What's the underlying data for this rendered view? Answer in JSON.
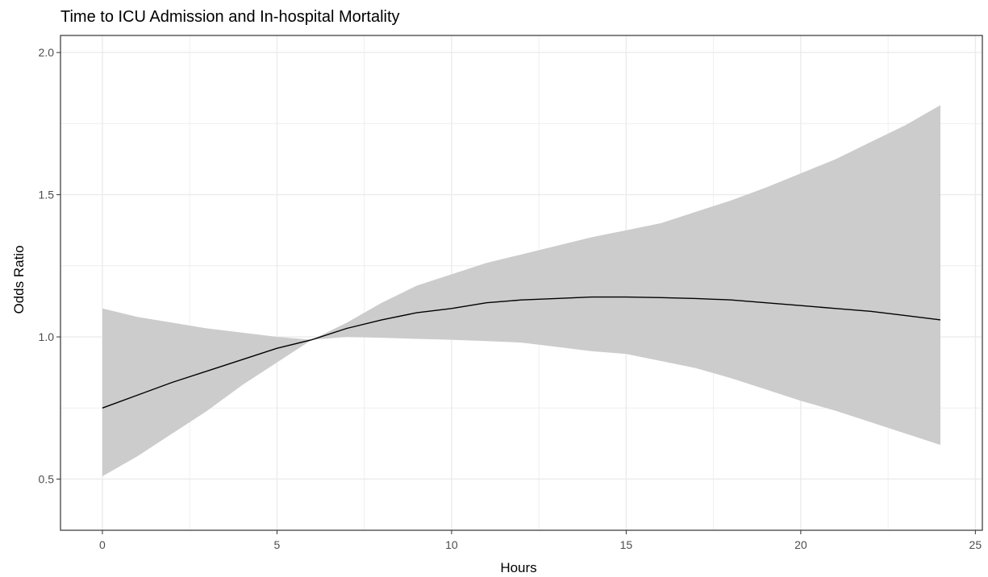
{
  "chart_data": {
    "type": "line",
    "title": "Time to ICU Admission and In-hospital Mortality",
    "xlabel": "Hours",
    "ylabel": "Odds Ratio",
    "xlim": [
      -1.2,
      25.2
    ],
    "ylim": [
      0.32,
      2.06
    ],
    "xticks": [
      0,
      5,
      10,
      15,
      20,
      25
    ],
    "xtick_labels": [
      "0",
      "5",
      "10",
      "15",
      "20",
      "25"
    ],
    "yticks": [
      0.5,
      1.0,
      1.5,
      2.0
    ],
    "ytick_labels": [
      "0.5",
      "1.0",
      "1.5",
      "2.0"
    ],
    "grid": true,
    "legend": "none",
    "colors": {
      "line": "#000000",
      "band": "#cccccc",
      "grid": "#ebebeb",
      "panel_border": "#333333"
    },
    "x": [
      0,
      1,
      2,
      3,
      4,
      5,
      6,
      7,
      8,
      9,
      10,
      11,
      12,
      13,
      14,
      15,
      16,
      17,
      18,
      19,
      20,
      21,
      22,
      23,
      24
    ],
    "series": [
      {
        "values": [
          0.75,
          0.795,
          0.84,
          0.88,
          0.92,
          0.96,
          0.99,
          1.03,
          1.06,
          1.085,
          1.1,
          1.12,
          1.13,
          1.135,
          1.14,
          1.14,
          1.138,
          1.135,
          1.13,
          1.12,
          1.11,
          1.1,
          1.09,
          1.075,
          1.06
        ],
        "lower": [
          0.51,
          0.58,
          0.66,
          0.74,
          0.83,
          0.91,
          0.99,
          1.0,
          0.997,
          0.993,
          0.99,
          0.985,
          0.98,
          0.965,
          0.95,
          0.94,
          0.915,
          0.89,
          0.855,
          0.815,
          0.775,
          0.74,
          0.7,
          0.66,
          0.62
        ],
        "upper": [
          1.1,
          1.07,
          1.05,
          1.03,
          1.015,
          1.0,
          0.99,
          1.05,
          1.12,
          1.18,
          1.22,
          1.26,
          1.29,
          1.32,
          1.35,
          1.375,
          1.4,
          1.44,
          1.48,
          1.525,
          1.575,
          1.625,
          1.685,
          1.745,
          1.815
        ]
      }
    ]
  }
}
